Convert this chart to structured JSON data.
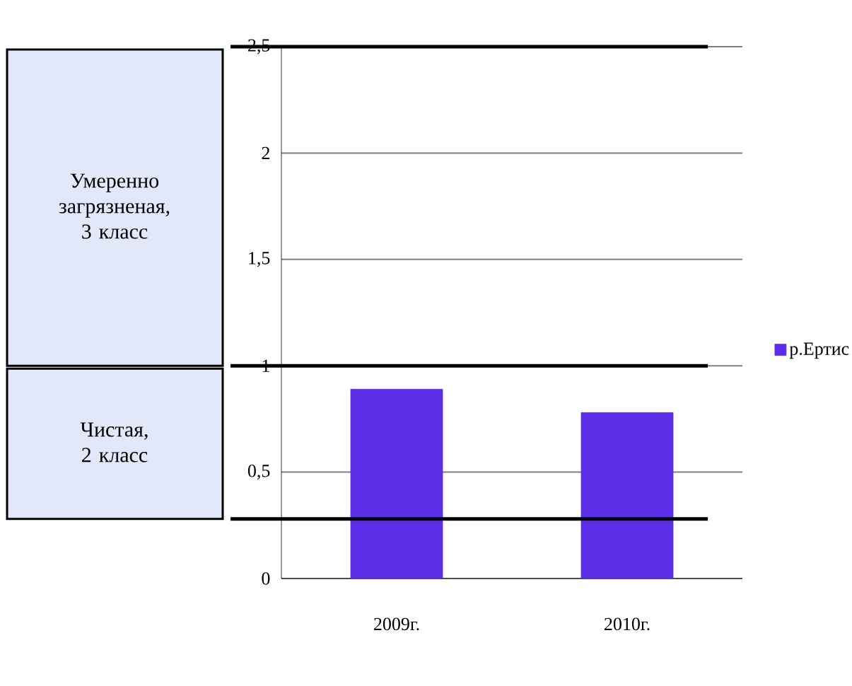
{
  "chart_data": {
    "type": "bar",
    "categories": [
      "2009г.",
      "2010г."
    ],
    "series": [
      {
        "name": "р.Ертис",
        "color": "#5a2ee6",
        "values": [
          0.89,
          0.78
        ]
      }
    ],
    "ylim": [
      0,
      2.5
    ],
    "yticks": [
      0,
      {
        "value": 0.5,
        "label": "0,5"
      },
      1,
      {
        "value": 1.5,
        "label": "1,5"
      },
      2,
      {
        "value": 2.5,
        "label": "2,5"
      }
    ],
    "grid": "y",
    "legend": "right",
    "ref_lines": [
      {
        "axis": "y",
        "value": 2.5,
        "color": "#000000"
      },
      {
        "axis": "y",
        "value": 1,
        "color": "#000000"
      },
      {
        "axis": "y",
        "value": 0.28,
        "color": "#000000"
      }
    ],
    "annotations": [
      "Умеренно загрязненая, 3 класс",
      "Чистая, 2 класс"
    ]
  }
}
